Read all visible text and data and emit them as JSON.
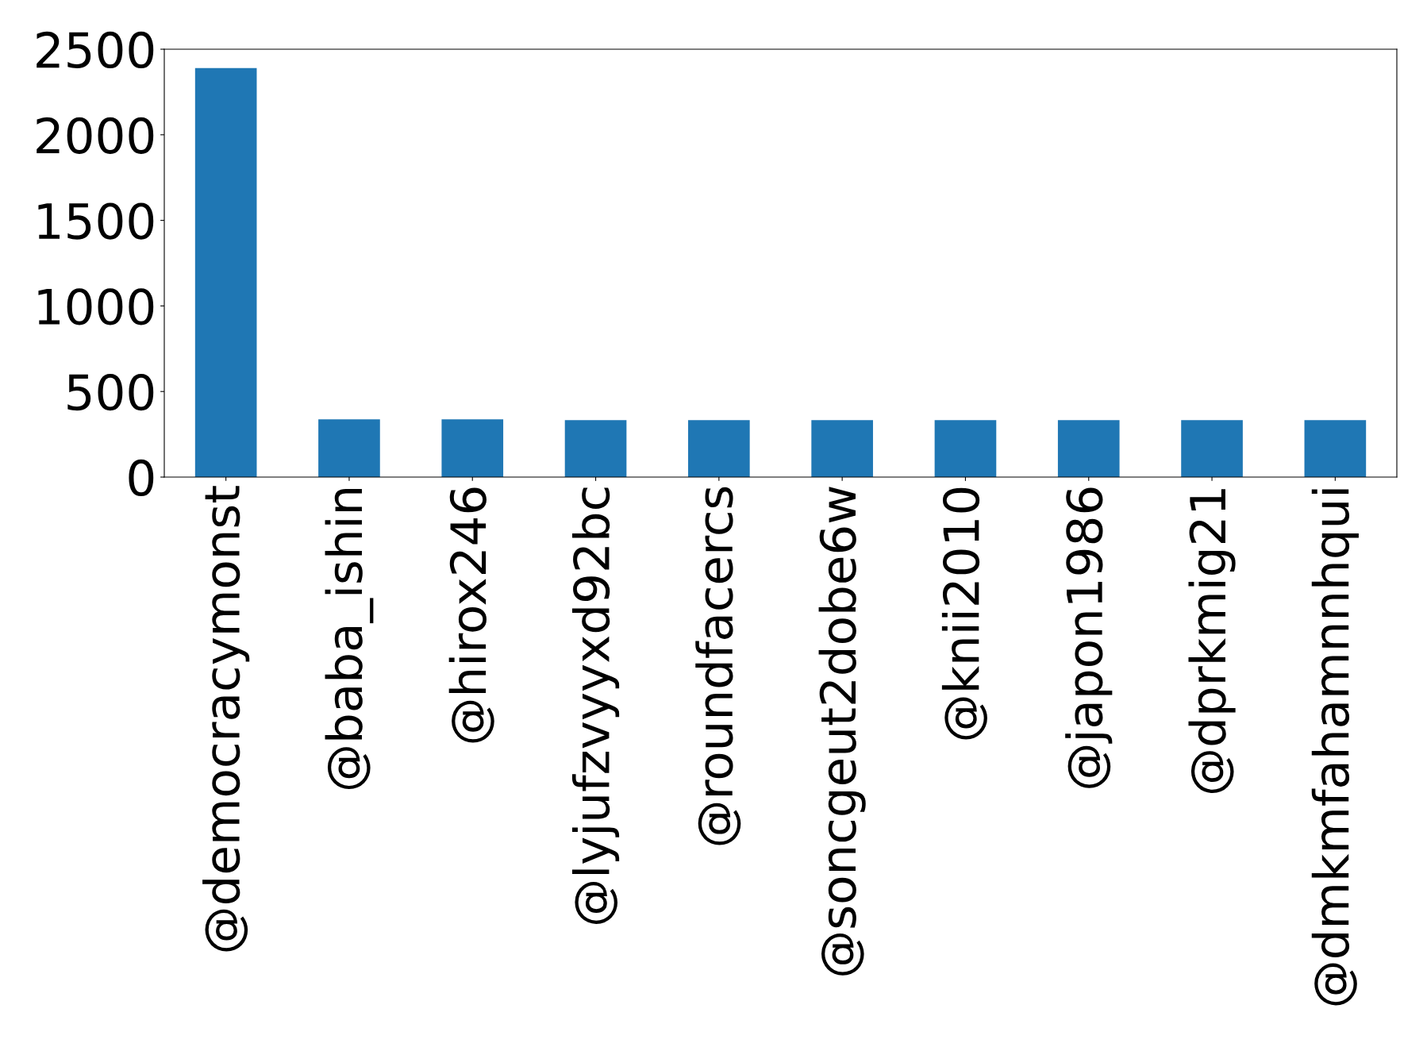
{
  "chart_data": {
    "type": "bar",
    "categories": [
      "@democracymonst",
      "@baba_ishin",
      "@hirox246",
      "@lyjufzvyyxd92bc",
      "@roundfacercs",
      "@soncgeut2dobe6w",
      "@knii2010",
      "@japon1986",
      "@dprkmig21",
      "@dmkmfahamnnhqui"
    ],
    "values": [
      2390,
      338,
      338,
      333,
      333,
      333,
      333,
      333,
      333,
      333
    ],
    "color": "#1f77b4",
    "ylim": [
      0,
      2500
    ],
    "yticks": [
      0,
      500,
      1000,
      1500,
      2000,
      2500
    ],
    "grid": false,
    "legend": false
  }
}
